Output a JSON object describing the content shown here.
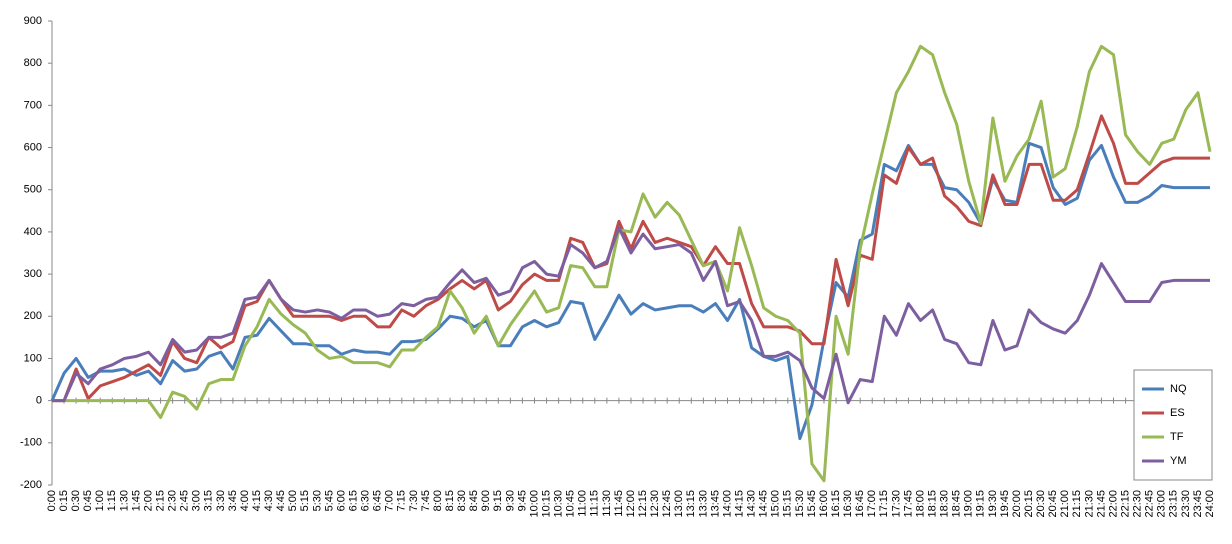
{
  "chart_data": {
    "type": "line",
    "categories": [
      "0:00",
      "0:15",
      "0:30",
      "0:45",
      "1:00",
      "1:15",
      "1:30",
      "1:45",
      "2:00",
      "2:15",
      "2:30",
      "2:45",
      "3:00",
      "3:15",
      "3:30",
      "3:45",
      "4:00",
      "4:15",
      "4:30",
      "4:45",
      "5:00",
      "5:15",
      "5:30",
      "5:45",
      "6:00",
      "6:15",
      "6:30",
      "6:45",
      "7:00",
      "7:15",
      "7:30",
      "7:45",
      "8:00",
      "8:15",
      "8:30",
      "8:45",
      "9:00",
      "9:15",
      "9:30",
      "9:45",
      "10:00",
      "10:15",
      "10:30",
      "10:45",
      "11:00",
      "11:15",
      "11:30",
      "11:45",
      "12:00",
      "12:15",
      "12:30",
      "12:45",
      "13:00",
      "13:15",
      "13:30",
      "13:45",
      "14:00",
      "14:15",
      "14:30",
      "14:45",
      "15:00",
      "15:15",
      "15:30",
      "15:45",
      "16:00",
      "16:15",
      "16:30",
      "16:45",
      "17:00",
      "17:15",
      "17:30",
      "17:45",
      "18:00",
      "18:15",
      "18:30",
      "18:45",
      "19:00",
      "19:15",
      "19:30",
      "19:45",
      "20:00",
      "20:15",
      "20:30",
      "20:45",
      "21:00",
      "21:15",
      "21:30",
      "21:45",
      "22:00",
      "22:15",
      "22:30",
      "22:45",
      "23:00",
      "23:15",
      "23:30",
      "23:45",
      "24:00"
    ],
    "series": [
      {
        "name": "NQ",
        "color": "#4a7ebb",
        "values": [
          0,
          65,
          100,
          55,
          70,
          70,
          75,
          60,
          70,
          40,
          95,
          70,
          75,
          105,
          115,
          75,
          150,
          155,
          195,
          165,
          135,
          135,
          130,
          130,
          110,
          120,
          115,
          115,
          110,
          140,
          140,
          145,
          170,
          200,
          195,
          175,
          190,
          130,
          130,
          175,
          190,
          175,
          185,
          235,
          230,
          145,
          195,
          250,
          205,
          230,
          215,
          220,
          225,
          225,
          210,
          230,
          190,
          240,
          125,
          105,
          95,
          105,
          -90,
          -10,
          145,
          280,
          245,
          380,
          395,
          560,
          545,
          605,
          560,
          560,
          505,
          500,
          470,
          420,
          525,
          475,
          470,
          610,
          600,
          505,
          465,
          480,
          570,
          605,
          530,
          470,
          470,
          485,
          510,
          505,
          505,
          505,
          505
        ]
      },
      {
        "name": "ES",
        "color": "#be4b48",
        "values": [
          0,
          0,
          75,
          5,
          35,
          45,
          55,
          70,
          85,
          60,
          140,
          100,
          90,
          150,
          125,
          140,
          225,
          235,
          285,
          240,
          200,
          200,
          200,
          200,
          190,
          200,
          200,
          175,
          175,
          215,
          200,
          225,
          240,
          265,
          285,
          265,
          285,
          215,
          235,
          275,
          300,
          285,
          285,
          385,
          375,
          315,
          325,
          425,
          360,
          425,
          375,
          385,
          375,
          365,
          320,
          365,
          325,
          325,
          230,
          175,
          175,
          175,
          165,
          135,
          135,
          335,
          225,
          345,
          335,
          535,
          515,
          600,
          560,
          575,
          485,
          460,
          425,
          415,
          535,
          465,
          465,
          560,
          560,
          475,
          475,
          500,
          585,
          675,
          610,
          515,
          515,
          540,
          565,
          575,
          575,
          575,
          575
        ]
      },
      {
        "name": "TF",
        "color": "#98b954",
        "values": [
          0,
          0,
          0,
          0,
          0,
          0,
          0,
          0,
          0,
          -40,
          20,
          10,
          -20,
          40,
          50,
          50,
          130,
          175,
          240,
          205,
          180,
          160,
          120,
          100,
          105,
          90,
          90,
          90,
          80,
          120,
          120,
          150,
          175,
          260,
          220,
          160,
          200,
          130,
          180,
          220,
          260,
          210,
          220,
          320,
          315,
          270,
          270,
          405,
          400,
          490,
          435,
          470,
          440,
          380,
          320,
          330,
          260,
          410,
          320,
          220,
          200,
          190,
          160,
          -150,
          -190,
          200,
          110,
          360,
          490,
          610,
          730,
          780,
          840,
          820,
          730,
          655,
          520,
          420,
          670,
          520,
          580,
          620,
          710,
          530,
          550,
          650,
          780,
          840,
          820,
          630,
          590,
          560,
          610,
          620,
          690,
          730,
          590
        ]
      },
      {
        "name": "YM",
        "color": "#7d5fa0",
        "values": [
          0,
          0,
          65,
          40,
          75,
          85,
          100,
          105,
          115,
          85,
          145,
          115,
          120,
          150,
          150,
          160,
          240,
          245,
          285,
          240,
          215,
          210,
          215,
          210,
          195,
          215,
          215,
          200,
          205,
          230,
          225,
          240,
          245,
          280,
          310,
          280,
          290,
          250,
          260,
          315,
          330,
          300,
          295,
          370,
          350,
          315,
          330,
          410,
          350,
          395,
          360,
          365,
          370,
          350,
          285,
          330,
          225,
          235,
          190,
          105,
          105,
          115,
          95,
          30,
          5,
          110,
          -5,
          50,
          45,
          200,
          155,
          230,
          190,
          215,
          145,
          135,
          90,
          85,
          190,
          120,
          130,
          215,
          185,
          170,
          160,
          190,
          250,
          325,
          280,
          235,
          235,
          235,
          280,
          285,
          285,
          285,
          285
        ]
      }
    ],
    "ylim": [
      -200,
      900
    ],
    "yticks": [
      -200,
      -100,
      0,
      100,
      200,
      300,
      400,
      500,
      600,
      700,
      800,
      900
    ],
    "grid": false,
    "legend": "bottom-right"
  }
}
